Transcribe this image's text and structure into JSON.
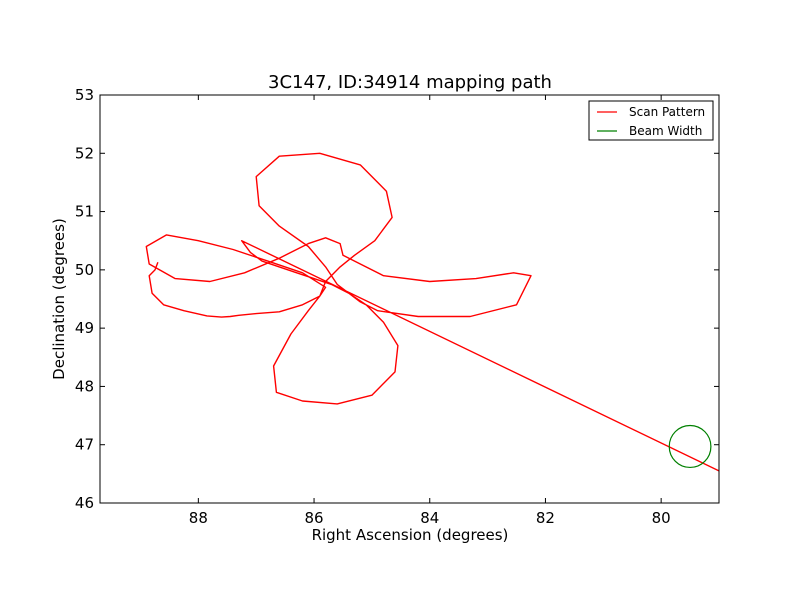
{
  "chart_data": {
    "type": "line",
    "title": "3C147, ID:34914 mapping path",
    "xlabel": "Right Ascension (degrees)",
    "ylabel": "Declination (degrees)",
    "xlim": [
      89.7,
      79.0
    ],
    "ylim": [
      46,
      53
    ],
    "x_ticks": [
      88,
      86,
      84,
      82,
      80
    ],
    "y_ticks": [
      46,
      47,
      48,
      49,
      50,
      51,
      52,
      53
    ],
    "x_tick_labels": [
      "88",
      "86",
      "84",
      "82",
      "80"
    ],
    "y_tick_labels": [
      "46",
      "47",
      "48",
      "49",
      "50",
      "51",
      "52",
      "53"
    ],
    "grid": false,
    "legend_position": "top-right",
    "series": [
      {
        "name": "Scan Pattern",
        "color": "#ff0000",
        "x": [
          88.7,
          88.75,
          88.85,
          88.8,
          88.6,
          88.25,
          87.85,
          87.6,
          87.45,
          87.3,
          87.0,
          86.6,
          86.2,
          85.9,
          85.8,
          86.2,
          86.8,
          87.4,
          88.0,
          88.55,
          88.9,
          88.85,
          88.4,
          87.8,
          87.2,
          86.6,
          86.1,
          85.8,
          85.55,
          85.5,
          85.2,
          84.8,
          84.0,
          83.2,
          82.55,
          82.25,
          82.5,
          83.3,
          84.2,
          84.9,
          85.2,
          85.4,
          85.6,
          85.8,
          86.1,
          86.6,
          86.95,
          87.0,
          86.6,
          85.9,
          85.2,
          84.75,
          84.65,
          84.95,
          85.3,
          85.55,
          85.8,
          85.9,
          86.1,
          86.4,
          86.7,
          86.65,
          86.2,
          85.6,
          85.0,
          84.6,
          84.55,
          84.8,
          85.1,
          85.4,
          85.7,
          86.0,
          86.3,
          86.6,
          86.9,
          87.1,
          87.25,
          79.0
        ],
        "y": [
          50.13,
          50.0,
          49.9,
          49.6,
          49.4,
          49.3,
          49.21,
          49.19,
          49.2,
          49.22,
          49.25,
          49.28,
          49.4,
          49.55,
          49.7,
          49.95,
          50.15,
          50.35,
          50.5,
          50.6,
          50.4,
          50.1,
          49.85,
          49.8,
          49.95,
          50.2,
          50.45,
          50.55,
          50.45,
          50.25,
          50.1,
          49.9,
          49.8,
          49.85,
          49.95,
          49.9,
          49.4,
          49.2,
          49.2,
          49.3,
          49.45,
          49.6,
          49.75,
          50.05,
          50.4,
          50.75,
          51.1,
          51.6,
          51.95,
          52.0,
          51.8,
          51.35,
          50.9,
          50.5,
          50.25,
          50.05,
          49.8,
          49.55,
          49.3,
          48.9,
          48.35,
          47.9,
          47.75,
          47.7,
          47.85,
          48.25,
          48.7,
          49.1,
          49.4,
          49.6,
          49.75,
          49.85,
          49.95,
          50.05,
          50.15,
          50.3,
          50.5,
          46.55
        ]
      },
      {
        "name": "Beam Width",
        "color": "#008000",
        "shape": "circle",
        "center": [
          79.5,
          46.97
        ],
        "radius_deg": 0.36
      }
    ]
  }
}
